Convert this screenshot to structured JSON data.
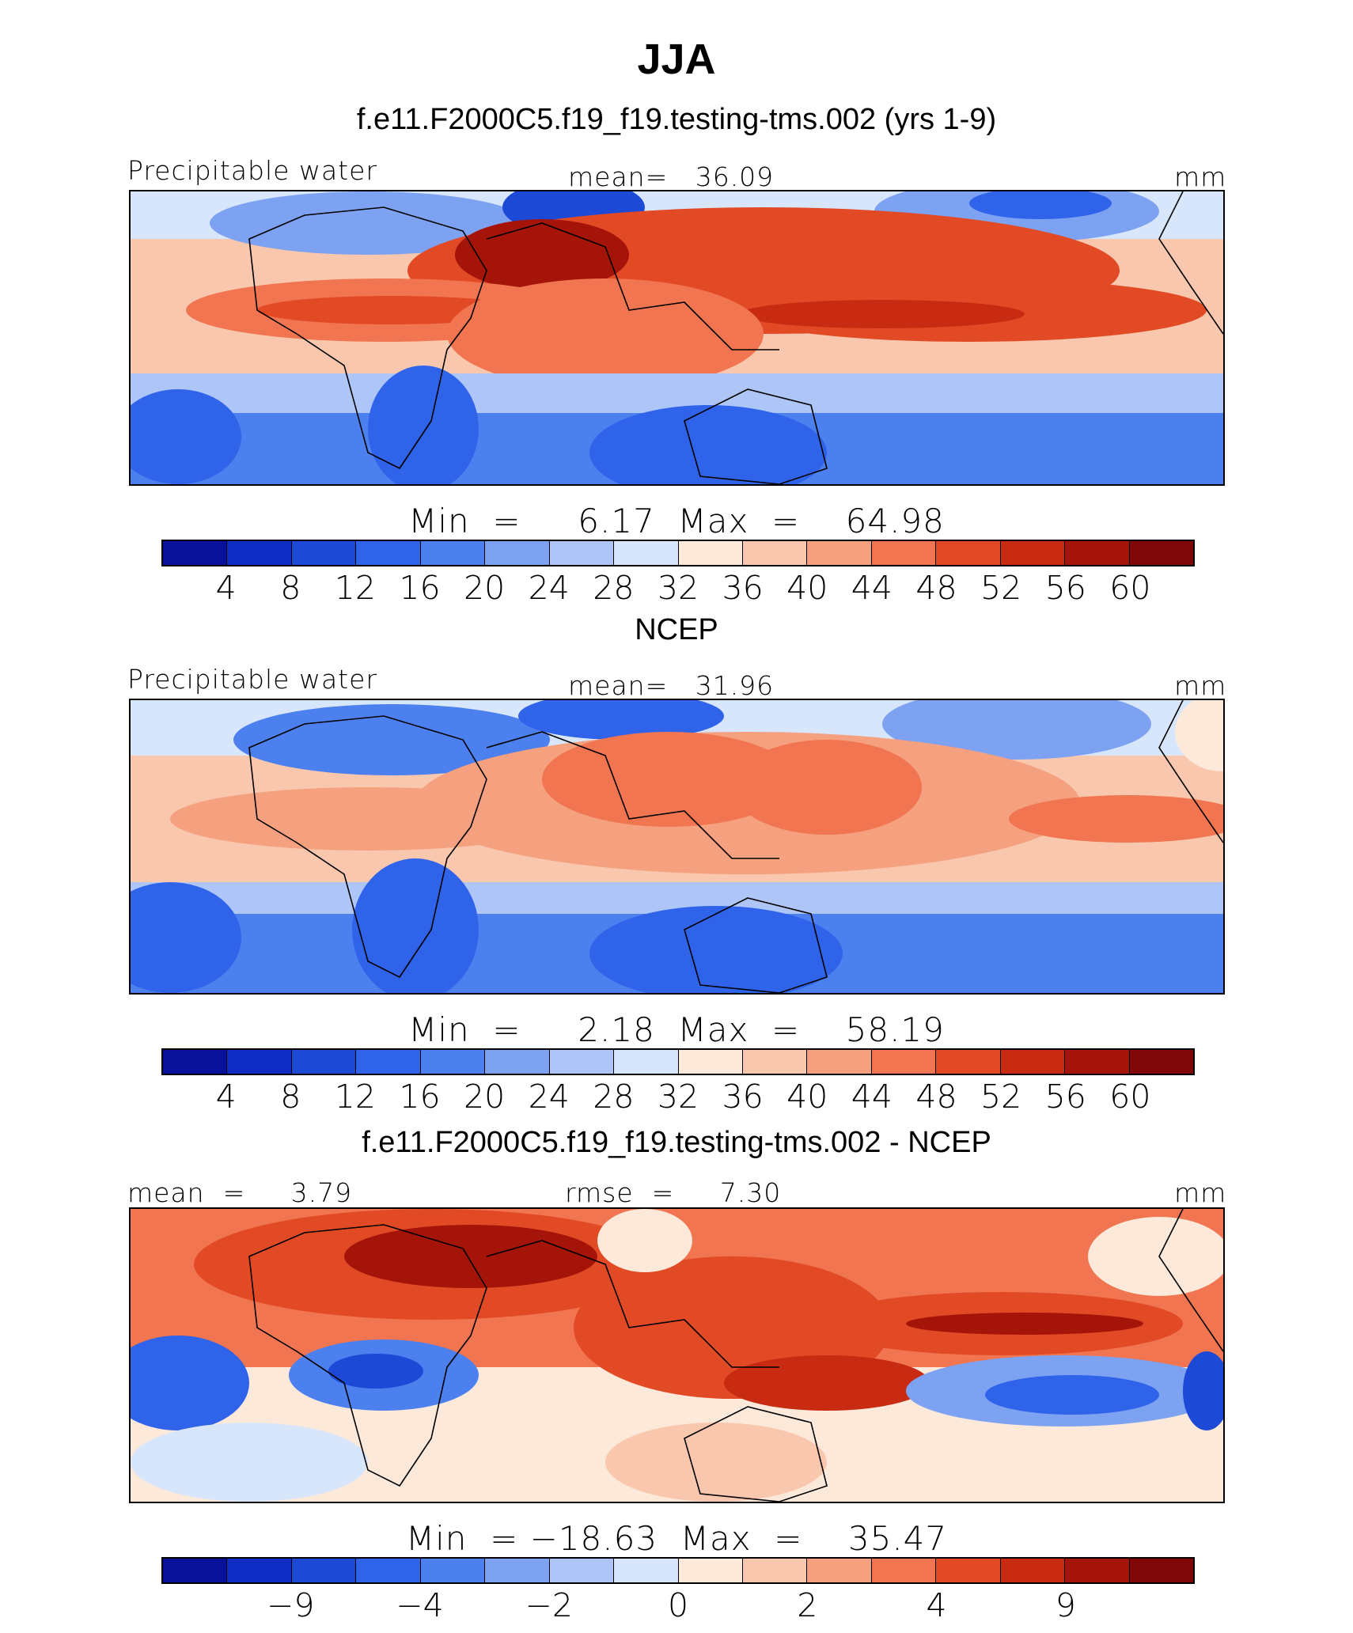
{
  "title": "JJA",
  "palette": [
    "#08119a",
    "#0f2dc4",
    "#1c4ad6",
    "#2f63ea",
    "#4d80ef",
    "#7ea2f2",
    "#aec6f7",
    "#d8e6fb",
    "#fde9da",
    "#f9c7ad",
    "#f5a07e",
    "#f07550",
    "#e24a25",
    "#c92a12",
    "#a51409",
    "#800707"
  ],
  "panels": [
    {
      "title": "f.e11.F2000C5.f19_f19.testing-tms.002 (yrs 1-9)",
      "left_label": "Precipitable water",
      "center_label": "mean=   36.09",
      "right_label": "mm",
      "minmax_label": "Min  =     6.17  Max  =    64.98",
      "colorbar_ticks": [
        "4",
        "8",
        "12",
        "16",
        "20",
        "24",
        "28",
        "32",
        "36",
        "40",
        "44",
        "48",
        "52",
        "56",
        "60"
      ]
    },
    {
      "title": "NCEP",
      "left_label": "Precipitable water",
      "center_label": "mean=   31.96",
      "right_label": "mm",
      "minmax_label": "Min  =     2.18  Max  =    58.19",
      "colorbar_ticks": [
        "4",
        "8",
        "12",
        "16",
        "20",
        "24",
        "28",
        "32",
        "36",
        "40",
        "44",
        "48",
        "52",
        "56",
        "60"
      ]
    },
    {
      "title": "f.e11.F2000C5.f19_f19.testing-tms.002 - NCEP",
      "left_label": "mean  =     3.79",
      "center_label": "rmse  =     7.30",
      "right_label": "mm",
      "minmax_label": "Min  = −18.63  Max  =    35.47",
      "colorbar_ticks": [
        "−9",
        "−4",
        "−2",
        "0",
        "2",
        "4",
        "9"
      ]
    }
  ],
  "chart_data": [
    {
      "type": "heatmap",
      "title": "f.e11.F2000C5.f19_f19.testing-tms.002 (yrs 1-9)",
      "variable": "Precipitable water",
      "units": "mm",
      "mean": 36.09,
      "min": 6.17,
      "max": 64.98,
      "contour_levels": [
        4,
        8,
        12,
        16,
        20,
        24,
        28,
        32,
        36,
        40,
        44,
        48,
        52,
        56,
        60
      ]
    },
    {
      "type": "heatmap",
      "title": "NCEP",
      "variable": "Precipitable water",
      "units": "mm",
      "mean": 31.96,
      "min": 2.18,
      "max": 58.19,
      "contour_levels": [
        4,
        8,
        12,
        16,
        20,
        24,
        28,
        32,
        36,
        40,
        44,
        48,
        52,
        56,
        60
      ]
    },
    {
      "type": "heatmap",
      "title": "f.e11.F2000C5.f19_f19.testing-tms.002 - NCEP",
      "units": "mm",
      "mean": 3.79,
      "rmse": 7.3,
      "min": -18.63,
      "max": 35.47,
      "colorbar_tick_labels": [
        -9,
        -4,
        -2,
        0,
        2,
        4,
        9
      ]
    }
  ]
}
